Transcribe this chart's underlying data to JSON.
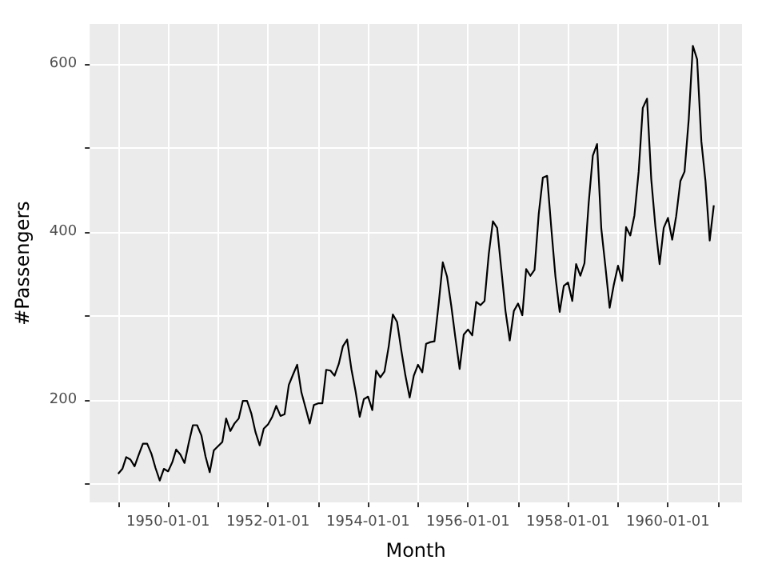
{
  "chart_data": {
    "type": "line",
    "xlabel": "Month",
    "ylabel": "#Passengers",
    "x": [
      "1949-01",
      "1949-02",
      "1949-03",
      "1949-04",
      "1949-05",
      "1949-06",
      "1949-07",
      "1949-08",
      "1949-09",
      "1949-10",
      "1949-11",
      "1949-12",
      "1950-01",
      "1950-02",
      "1950-03",
      "1950-04",
      "1950-05",
      "1950-06",
      "1950-07",
      "1950-08",
      "1950-09",
      "1950-10",
      "1950-11",
      "1950-12",
      "1951-01",
      "1951-02",
      "1951-03",
      "1951-04",
      "1951-05",
      "1951-06",
      "1951-07",
      "1951-08",
      "1951-09",
      "1951-10",
      "1951-11",
      "1951-12",
      "1952-01",
      "1952-02",
      "1952-03",
      "1952-04",
      "1952-05",
      "1952-06",
      "1952-07",
      "1952-08",
      "1952-09",
      "1952-10",
      "1952-11",
      "1952-12",
      "1953-01",
      "1953-02",
      "1953-03",
      "1953-04",
      "1953-05",
      "1953-06",
      "1953-07",
      "1953-08",
      "1953-09",
      "1953-10",
      "1953-11",
      "1953-12",
      "1954-01",
      "1954-02",
      "1954-03",
      "1954-04",
      "1954-05",
      "1954-06",
      "1954-07",
      "1954-08",
      "1954-09",
      "1954-10",
      "1954-11",
      "1954-12",
      "1955-01",
      "1955-02",
      "1955-03",
      "1955-04",
      "1955-05",
      "1955-06",
      "1955-07",
      "1955-08",
      "1955-09",
      "1955-10",
      "1955-11",
      "1955-12",
      "1956-01",
      "1956-02",
      "1956-03",
      "1956-04",
      "1956-05",
      "1956-06",
      "1956-07",
      "1956-08",
      "1956-09",
      "1956-10",
      "1956-11",
      "1956-12",
      "1957-01",
      "1957-02",
      "1957-03",
      "1957-04",
      "1957-05",
      "1957-06",
      "1957-07",
      "1957-08",
      "1957-09",
      "1957-10",
      "1957-11",
      "1957-12",
      "1958-01",
      "1958-02",
      "1958-03",
      "1958-04",
      "1958-05",
      "1958-06",
      "1958-07",
      "1958-08",
      "1958-09",
      "1958-10",
      "1958-11",
      "1958-12",
      "1959-01",
      "1959-02",
      "1959-03",
      "1959-04",
      "1959-05",
      "1959-06",
      "1959-07",
      "1959-08",
      "1959-09",
      "1959-10",
      "1959-11",
      "1959-12",
      "1960-01",
      "1960-02",
      "1960-03",
      "1960-04",
      "1960-05",
      "1960-06",
      "1960-07",
      "1960-08",
      "1960-09",
      "1960-10",
      "1960-11",
      "1960-12"
    ],
    "series": [
      {
        "color": "#000000",
        "values": [
          112,
          118,
          132,
          129,
          121,
          135,
          148,
          148,
          136,
          119,
          104,
          118,
          115,
          126,
          141,
          135,
          125,
          149,
          170,
          170,
          158,
          133,
          114,
          140,
          145,
          150,
          178,
          163,
          172,
          178,
          199,
          199,
          184,
          162,
          146,
          166,
          171,
          180,
          193,
          181,
          183,
          218,
          230,
          242,
          209,
          191,
          172,
          194,
          196,
          196,
          236,
          235,
          229,
          243,
          264,
          272,
          237,
          211,
          180,
          201,
          204,
          188,
          235,
          227,
          234,
          264,
          302,
          293,
          259,
          229,
          203,
          229,
          242,
          233,
          267,
          269,
          270,
          315,
          364,
          347,
          312,
          274,
          237,
          278,
          284,
          277,
          317,
          313,
          318,
          374,
          413,
          405,
          355,
          306,
          271,
          306,
          315,
          301,
          356,
          348,
          355,
          422,
          465,
          467,
          404,
          347,
          305,
          336,
          340,
          318,
          362,
          348,
          363,
          435,
          491,
          505,
          404,
          359,
          310,
          337,
          360,
          342,
          406,
          396,
          420,
          472,
          548,
          559,
          463,
          407,
          362,
          405,
          417,
          391,
          419,
          461,
          472,
          535,
          622,
          606,
          508,
          461,
          390,
          432
        ]
      }
    ],
    "xlim": [
      "1948-06-07",
      "1961-06-25"
    ],
    "xticks": [
      {
        "value": "1949-01-01",
        "label": null
      },
      "1950-01-01",
      {
        "value": "1951-01-01",
        "label": null
      },
      "1952-01-01",
      {
        "value": "1953-01-01",
        "label": null
      },
      "1954-01-01",
      {
        "value": "1955-01-01",
        "label": null
      },
      "1956-01-01",
      {
        "value": "1957-01-01",
        "label": null
      },
      "1958-01-01",
      {
        "value": "1959-01-01",
        "label": null
      },
      "1960-01-01",
      {
        "value": "1961-01-01",
        "label": null
      }
    ],
    "ylim": [
      78,
      648
    ],
    "yticks": [
      {
        "value": 100,
        "label": null
      },
      200,
      {
        "value": 300,
        "label": null
      },
      400,
      {
        "value": 500,
        "label": null
      },
      600
    ],
    "grid": true,
    "marker": "none",
    "line_style": "solid"
  }
}
